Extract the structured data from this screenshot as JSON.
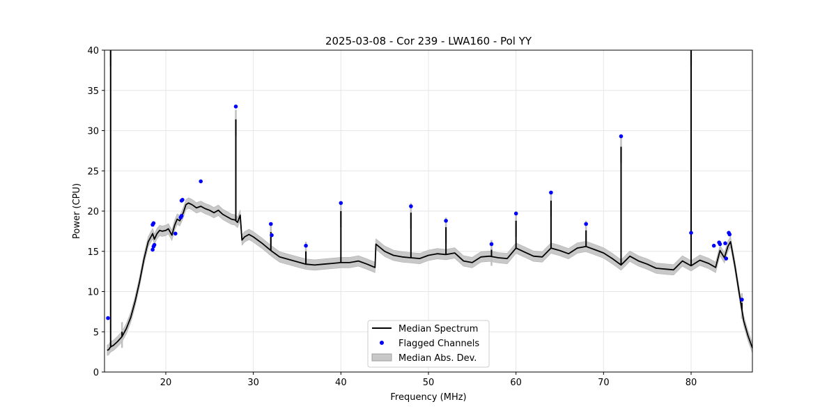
{
  "chart_data": {
    "type": "line",
    "title": "2025-03-08 - Cor 239 - LWA160 - Pol YY",
    "xlabel": "Frequency (MHz)",
    "ylabel": "Power (CPU)",
    "xlim": [
      13,
      87
    ],
    "ylim": [
      0,
      40
    ],
    "x_ticks": [
      20,
      30,
      40,
      50,
      60,
      70,
      80
    ],
    "y_ticks": [
      0,
      5,
      10,
      15,
      20,
      25,
      30,
      35,
      40
    ],
    "grid": true,
    "legend": {
      "placement": "lower-center",
      "entries": [
        "Median Spectrum",
        "Flagged Channels",
        "Median Abs. Dev."
      ]
    },
    "colors": {
      "median": "#000000",
      "flagged": "#0000ff",
      "mad_band": "#b0b0b0"
    },
    "series": [
      {
        "name": "Median Spectrum",
        "x": [
          13.3,
          13.5,
          13.6,
          13.7,
          13.8,
          14.0,
          14.5,
          15.0,
          15.5,
          16.0,
          16.5,
          17.0,
          17.5,
          18.0,
          18.3,
          18.5,
          18.7,
          19.0,
          19.3,
          19.6,
          20.0,
          20.3,
          20.7,
          21.0,
          21.3,
          21.6,
          22.0,
          22.3,
          22.6,
          23.0,
          23.5,
          24.0,
          24.5,
          25.0,
          25.5,
          26.0,
          26.5,
          27.0,
          27.5,
          27.9,
          28.2,
          28.5,
          28.7,
          29.0,
          29.5,
          30.0,
          31.0,
          32.0,
          33.0,
          34.0,
          35.0,
          36.0,
          37.0,
          38.0,
          39.0,
          40.0,
          41.0,
          42.0,
          43.0,
          43.9,
          44.0,
          45.0,
          46.0,
          47.0,
          48.0,
          49.0,
          50.0,
          51.0,
          52.0,
          53.0,
          54.0,
          55.0,
          56.0,
          57.0,
          58.0,
          59.0,
          60.0,
          61.0,
          62.0,
          63.0,
          64.0,
          65.0,
          66.0,
          67.0,
          68.0,
          69.0,
          70.0,
          71.0,
          72.0,
          73.0,
          74.0,
          75.0,
          76.0,
          77.0,
          78.0,
          79.0,
          80.0,
          81.0,
          82.0,
          82.8,
          83.3,
          83.8,
          84.2,
          84.5,
          85.0,
          85.5,
          86.0,
          86.5,
          87.0
        ],
        "values": [
          2.7,
          2.8,
          3.0,
          3.1,
          3.2,
          3.3,
          3.8,
          4.4,
          5.4,
          6.8,
          8.8,
          11.2,
          14.0,
          16.2,
          16.8,
          17.2,
          16.5,
          17.2,
          17.6,
          17.5,
          17.6,
          17.8,
          17.0,
          18.2,
          19.0,
          18.8,
          19.8,
          20.8,
          21.0,
          20.8,
          20.4,
          20.6,
          20.3,
          20.1,
          19.8,
          20.1,
          19.6,
          19.3,
          19.0,
          18.9,
          18.6,
          19.5,
          16.4,
          16.8,
          17.1,
          16.8,
          16.0,
          15.1,
          14.3,
          14.0,
          13.7,
          13.4,
          13.3,
          13.4,
          13.5,
          13.6,
          13.6,
          13.8,
          13.4,
          13.0,
          15.9,
          15.0,
          14.5,
          14.3,
          14.2,
          14.1,
          14.5,
          14.7,
          14.6,
          14.8,
          13.8,
          13.6,
          14.3,
          14.4,
          14.2,
          14.1,
          15.4,
          14.9,
          14.4,
          14.3,
          15.4,
          15.1,
          14.7,
          15.4,
          15.6,
          15.2,
          14.8,
          14.1,
          13.3,
          14.4,
          13.8,
          13.4,
          12.9,
          12.8,
          12.7,
          13.8,
          13.2,
          13.9,
          13.5,
          13.0,
          15.1,
          14.2,
          15.6,
          16.2,
          13.2,
          9.8,
          6.4,
          4.5,
          3.0
        ],
        "spikes": [
          {
            "x": 13.7,
            "peak": 40
          },
          {
            "x": 15.0,
            "peak": 5.0
          },
          {
            "x": 28.0,
            "peak": 31.4
          },
          {
            "x": 32.0,
            "peak": 17.4
          },
          {
            "x": 36.0,
            "peak": 15.0
          },
          {
            "x": 40.0,
            "peak": 20.0
          },
          {
            "x": 48.0,
            "peak": 19.8
          },
          {
            "x": 52.0,
            "peak": 18.0
          },
          {
            "x": 57.2,
            "peak": 15.2
          },
          {
            "x": 60.0,
            "peak": 18.8
          },
          {
            "x": 64.0,
            "peak": 21.3
          },
          {
            "x": 68.0,
            "peak": 17.6
          },
          {
            "x": 72.0,
            "peak": 28.0
          },
          {
            "x": 80.0,
            "peak": 40
          },
          {
            "x": 85.8,
            "peak": 8.6
          }
        ]
      },
      {
        "name": "Flagged Channels",
        "type": "scatter",
        "x": [
          13.4,
          18.5,
          18.6,
          18.5,
          18.6,
          18.7,
          21.1,
          21.8,
          21.9,
          21.7,
          21.8,
          24.0,
          28.0,
          32.0,
          32.1,
          36.0,
          40.0,
          48.0,
          52.0,
          57.2,
          60.0,
          64.0,
          68.0,
          72.0,
          80.0,
          82.6,
          83.2,
          83.3,
          83.9,
          84.0,
          84.3,
          84.4,
          85.8
        ],
        "values": [
          6.7,
          18.3,
          18.5,
          15.2,
          15.6,
          15.8,
          17.2,
          21.3,
          21.4,
          19.2,
          19.4,
          23.7,
          33.0,
          18.4,
          17.0,
          15.7,
          21.0,
          20.6,
          18.8,
          15.9,
          19.7,
          22.3,
          18.4,
          29.3,
          17.3,
          15.7,
          16.1,
          15.9,
          16.0,
          14.1,
          17.3,
          17.1,
          9.0
        ]
      },
      {
        "name": "Median Abs. Dev.",
        "type": "area",
        "band_halfwidth": 0.65
      }
    ]
  }
}
